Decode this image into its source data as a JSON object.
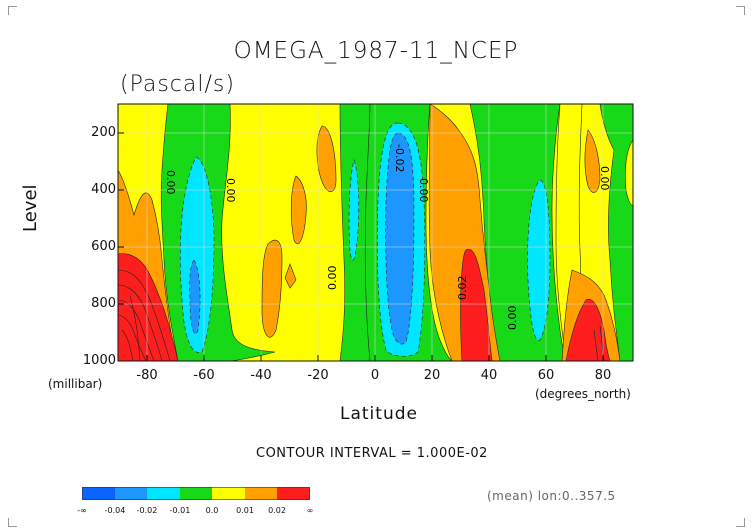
{
  "chart_data": {
    "type": "heatmap",
    "subtype": "filled-contour",
    "title": "OMEGA_1987-11_NCEP",
    "units": "(Pascal/s)",
    "xlabel": "Latitude",
    "ylabel": "Level",
    "x_units": "(degrees_north)",
    "y_units": "(millibar)",
    "xlim": [
      -90,
      90
    ],
    "ylim": [
      1000,
      100
    ],
    "x_ticks": [
      "-80",
      "-60",
      "-40",
      "-20",
      "0",
      "20",
      "40",
      "60",
      "80"
    ],
    "y_ticks": [
      "200",
      "400",
      "600",
      "800",
      "1000"
    ],
    "contour_interval_text": "CONTOUR INTERVAL = 1.000E-02",
    "mean_text": "(mean) lon:0..357.5",
    "contour_labels": [
      "0.00",
      "0.00",
      "-0.02",
      "0.00",
      "0.00",
      "0.02",
      "0.00",
      "0.00"
    ],
    "colorbar": {
      "labels": [
        "-∞",
        "-0.04",
        "-0.02",
        "-0.01",
        "0.0",
        "0.01",
        "0.02",
        "∞"
      ],
      "colors": [
        "#0a64ff",
        "#1e96ff",
        "#00e6ff",
        "#17d917",
        "#ffff00",
        "#ffa000",
        "#ff1e1e"
      ]
    },
    "regions": [
      {
        "level": "0.01",
        "lon": -90,
        "x": [
          -90,
          90
        ],
        "y": [
          100,
          1000
        ]
      },
      {
        "level": "0.0",
        "x": [
          -73,
          -28
        ],
        "y": [
          100,
          1000
        ]
      },
      {
        "level": "0.0",
        "x": [
          -13,
          1
        ],
        "y": [
          100,
          1000
        ]
      },
      {
        "level": "0.0",
        "x": [
          16,
          22
        ],
        "y": [
          100,
          1000
        ]
      },
      {
        "level": "0.0",
        "x": [
          45,
          73
        ],
        "y": [
          100,
          1000
        ]
      },
      {
        "level": "0.0",
        "x": [
          80,
          90
        ],
        "y": [
          100,
          1000
        ]
      }
    ]
  }
}
